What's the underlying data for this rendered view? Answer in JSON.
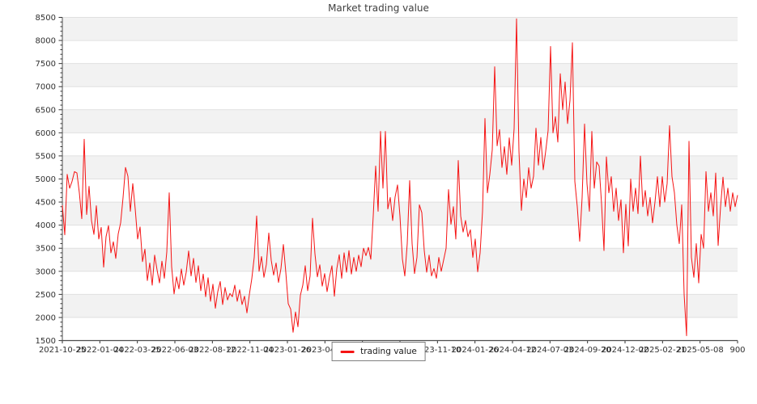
{
  "title": "Market trading value",
  "legend": {
    "label": "trading value"
  },
  "colors": {
    "line": "#f51414",
    "band": "#f2f2f2",
    "grid": "#e0e0e0",
    "spine": "#4d4d4d",
    "tick": "#333333",
    "tick_label": "#303030",
    "title_text": "#3f3f3f",
    "legend_border": "#7f7f7f"
  },
  "chart_data": {
    "type": "line",
    "title": "Market trading value",
    "xlabel": "",
    "ylabel": "",
    "ylim": [
      1500,
      8500
    ],
    "y_major_step": 500,
    "y_minor_step": 100,
    "grid": true,
    "striped_background": true,
    "legend_position": "bottom-center",
    "x_tick_labels": [
      "2021-10-25",
      "2022-01-04",
      "2022-03-25",
      "2022-06-03",
      "2022-08-12",
      "2022-11-04",
      "2023-01-26",
      "2023-04-07",
      "2023-06-16",
      "2023-08-25",
      "2023-11-10",
      "2024-01-26",
      "2024-04-12",
      "2024-07-03",
      "2024-09-20",
      "2024-12-02",
      "2025-02-21",
      "2025-05-08",
      "900"
    ],
    "y_tick_labels": [
      1500,
      2000,
      2500,
      3000,
      3500,
      4000,
      4500,
      5000,
      5500,
      6000,
      6500,
      7000,
      7500,
      8000,
      8500
    ],
    "series": [
      {
        "name": "trading value",
        "color": "#f51414",
        "values": [
          4430,
          3790,
          5100,
          4800,
          4950,
          5160,
          5130,
          4700,
          4140,
          5860,
          4230,
          4840,
          4100,
          3800,
          4420,
          3700,
          3950,
          3090,
          3750,
          3990,
          3400,
          3640,
          3280,
          3810,
          4050,
          4600,
          5250,
          5060,
          4300,
          4900,
          4350,
          3700,
          3960,
          3210,
          3480,
          2800,
          3180,
          2700,
          3350,
          3030,
          2750,
          3220,
          2850,
          3420,
          4700,
          3100,
          2510,
          2880,
          2620,
          3050,
          2700,
          2980,
          3440,
          2900,
          3280,
          2760,
          3120,
          2580,
          2940,
          2450,
          2860,
          2350,
          2720,
          2200,
          2560,
          2780,
          2280,
          2650,
          2380,
          2520,
          2450,
          2700,
          2350,
          2600,
          2280,
          2460,
          2100,
          2500,
          2840,
          3300,
          4200,
          3000,
          3320,
          2870,
          3150,
          3830,
          3240,
          2920,
          3180,
          2760,
          3060,
          3580,
          2980,
          2300,
          2180,
          1680,
          2120,
          1800,
          2480,
          2700,
          3120,
          2580,
          2900,
          4150,
          3380,
          2880,
          3140,
          2680,
          2950,
          2560,
          2880,
          3120,
          2460,
          3060,
          3360,
          2850,
          3400,
          2980,
          3450,
          2940,
          3300,
          3000,
          3350,
          3100,
          3500,
          3340,
          3520,
          3260,
          4200,
          5280,
          4300,
          6030,
          4800,
          6030,
          4350,
          4600,
          4100,
          4610,
          4870,
          4200,
          3270,
          2900,
          3600,
          4965,
          3600,
          2950,
          3300,
          4440,
          4270,
          3450,
          2980,
          3350,
          2900,
          3060,
          2850,
          3300,
          3000,
          3250,
          3500,
          4770,
          4020,
          4400,
          3700,
          5400,
          4200,
          3850,
          4100,
          3750,
          3900,
          3300,
          3700,
          2990,
          3400,
          4300,
          6310,
          4700,
          5100,
          5630,
          7430,
          5720,
          6070,
          5250,
          5700,
          5100,
          5890,
          5300,
          6090,
          8470,
          5600,
          4320,
          5000,
          4600,
          5245,
          4800,
          5060,
          6100,
          5300,
          5900,
          5200,
          5600,
          6050,
          7870,
          6000,
          6350,
          5800,
          7280,
          6500,
          7100,
          6200,
          6700,
          7950,
          4950,
          4400,
          3650,
          4600,
          6190,
          4900,
          4300,
          6030,
          4800,
          5370,
          5280,
          4460,
          3450,
          5480,
          4700,
          5050,
          4300,
          4800,
          4100,
          4550,
          3400,
          4450,
          3550,
          5000,
          4300,
          4800,
          4250,
          5495,
          4400,
          4750,
          4200,
          4600,
          4050,
          4500,
          5050,
          4400,
          5050,
          4500,
          4900,
          6155,
          5050,
          4700,
          4000,
          3600,
          4440,
          2500,
          1605,
          5815,
          3300,
          2870,
          3600,
          2750,
          3800,
          3500,
          5160,
          4300,
          4700,
          4200,
          5130,
          3560,
          4400,
          5040,
          4400,
          4800,
          4300,
          4700,
          4400,
          4650
        ]
      }
    ]
  }
}
